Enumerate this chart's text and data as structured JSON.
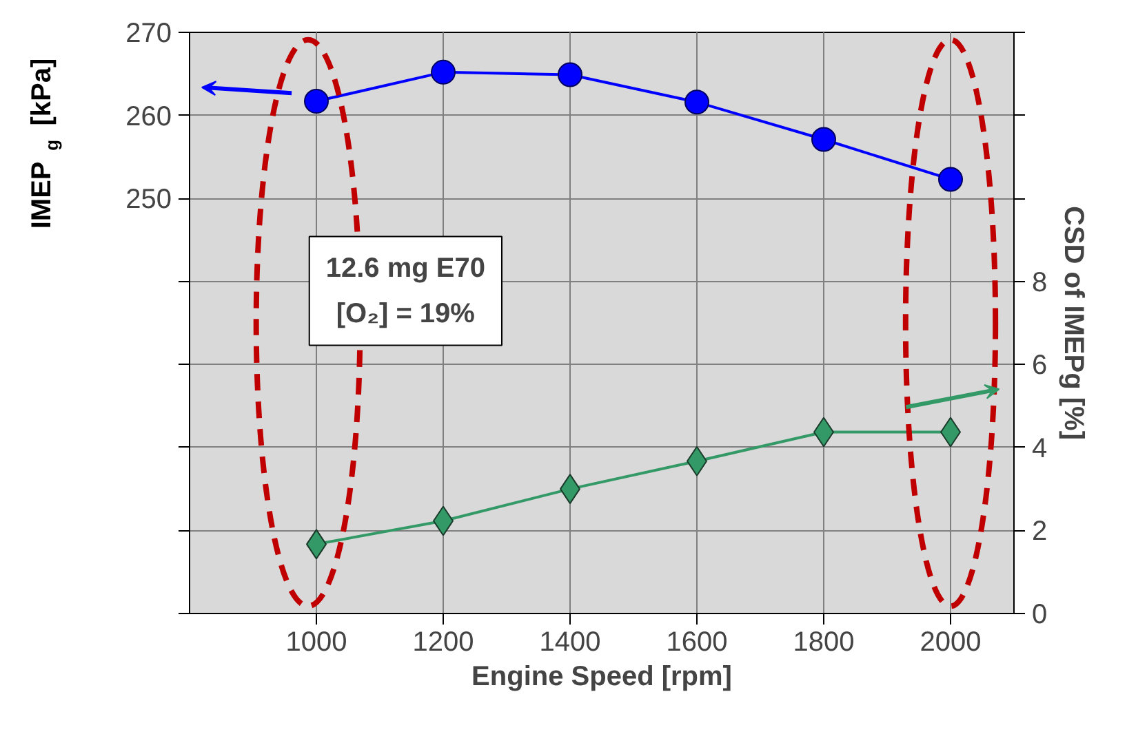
{
  "chart_data": {
    "type": "line",
    "xlabel": "Engine Speed [rpm]",
    "ylabel": "IMEP$_{g}$ [kPa]",
    "y2label": "CSD of IMEPg [%]",
    "annotations": [
      "12.6 mg E70\n[O₂] = 19%"
    ],
    "x": [
      1000,
      1200,
      1400,
      1600,
      1800,
      2000
    ],
    "series": [
      {
        "color": "#0000ff",
        "values": [
          261.7,
          265.2,
          264.9,
          261.6,
          257.1,
          252.3
        ],
        "marker": "circle"
      },
      {
        "color": "#339966",
        "values": [
          1.67,
          2.23,
          3.0,
          3.67,
          4.37,
          4.37
        ],
        "marker": "diamond",
        "axis": "y2"
      }
    ],
    "xlim": [
      800,
      2100
    ],
    "xticks": [
      1000,
      1200,
      1400,
      1600,
      1800,
      2000
    ],
    "ylim": [
      200,
      270
    ],
    "yticks": [
      {
        "value": 200,
        "label": null
      },
      {
        "value": 210,
        "label": null
      },
      {
        "value": 220,
        "label": null
      },
      {
        "value": 230,
        "label": null
      },
      {
        "value": 240,
        "label": null
      },
      250,
      260,
      270
    ],
    "y2lim": [
      0,
      14
    ],
    "y2ticks": [
      0,
      2,
      4,
      6,
      8,
      {
        "value": 10,
        "label": null
      },
      {
        "value": 12,
        "label": null
      },
      {
        "value": 14,
        "label": null
      }
    ],
    "grid": true
  }
}
